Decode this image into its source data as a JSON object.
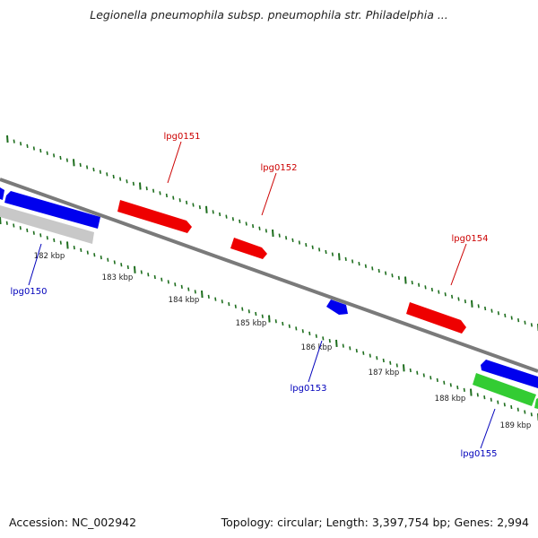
{
  "title": "Legionella pneumophila subsp. pneumophila str. Philadelphia ...",
  "footer": {
    "accession": "Accession: NC_002942",
    "topology": "Topology: circular; Length: 3,397,754 bp; Genes: 2,994"
  },
  "colors": {
    "backbone": "#7a7a7a",
    "tick_marks": "#1e6e1e",
    "forward_label": "#cc0000",
    "reverse_label": "#0000bb",
    "forward_gene": "#ee0000",
    "reverse_gene": "#0000ee",
    "rna_feature": "#c8c8c8",
    "other_feature": "#33cc33"
  },
  "scale_labels": [
    "182 kbp",
    "183 kbp",
    "184 kbp",
    "185 kbp",
    "186 kbp",
    "187 kbp",
    "188 kbp",
    "189 kbp"
  ],
  "gene_labels": [
    {
      "text": "lpg0150",
      "strand": "reverse"
    },
    {
      "text": "lpg0151",
      "strand": "forward"
    },
    {
      "text": "lpg0152",
      "strand": "forward"
    },
    {
      "text": "lpg0153",
      "strand": "reverse"
    },
    {
      "text": "lpg0154",
      "strand": "forward"
    },
    {
      "text": "lpg0155",
      "strand": "reverse"
    }
  ]
}
